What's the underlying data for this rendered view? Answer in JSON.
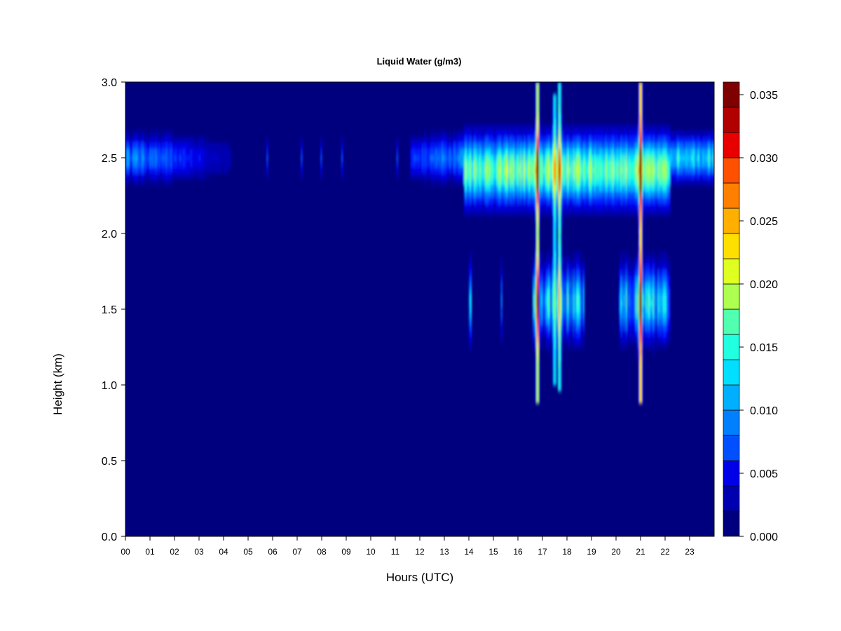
{
  "chart_data": {
    "type": "heatmap",
    "title": "Liquid Water (g/m3)",
    "xlabel": "Hours (UTC)",
    "ylabel": "Height (km)",
    "xlim": [
      0,
      24
    ],
    "ylim": [
      0.0,
      3.0
    ],
    "x_tick_labels": [
      "00",
      "01",
      "02",
      "03",
      "04",
      "05",
      "06",
      "07",
      "08",
      "09",
      "10",
      "11",
      "12",
      "13",
      "14",
      "15",
      "16",
      "17",
      "18",
      "19",
      "20",
      "21",
      "22",
      "23"
    ],
    "y_tick_labels": [
      "0.0",
      "0.5",
      "1.0",
      "1.5",
      "2.0",
      "2.5",
      "3.0"
    ],
    "colorbar": {
      "range": [
        0.0,
        0.036
      ],
      "levels": 18,
      "tick_values": [
        0.0,
        0.005,
        0.01,
        0.015,
        0.02,
        0.025,
        0.03,
        0.035
      ],
      "tick_labels": [
        "0.000",
        "0.005",
        "0.010",
        "0.015",
        "0.020",
        "0.025",
        "0.030",
        "0.035"
      ],
      "colors": [
        "#00007F",
        "#0000B0",
        "#0000E8",
        "#0020FF",
        "#0050FF",
        "#0080FF",
        "#00AFFF",
        "#00DFFF",
        "#20FFDF",
        "#50FFAF",
        "#80FF80",
        "#AFFF50",
        "#DFFF20",
        "#FFDF00",
        "#FFAF00",
        "#FF8000",
        "#FF5000",
        "#FF2000",
        "#E80000",
        "#B00000",
        "#7F0000"
      ]
    },
    "upper_layer": {
      "height_range_km": [
        2.05,
        2.75
      ],
      "core_height_km": 2.5,
      "active_hours": [
        [
          0.0,
          4.2
        ],
        [
          11.7,
          24.0
        ]
      ],
      "peak_value": 0.03
    },
    "lower_layer": {
      "height_range_km": [
        0.9,
        1.85
      ],
      "core_height_km": 1.55,
      "active_hours": [
        [
          16.6,
          18.7
        ],
        [
          20.1,
          22.2
        ]
      ],
      "peak_value": 0.031
    },
    "columns": [
      {
        "hour": 16.8,
        "base_km": 0.9,
        "top_km": 3.0,
        "peak": 0.026
      },
      {
        "hour": 17.5,
        "base_km": 1.0,
        "top_km": 2.9,
        "peak": 0.024
      },
      {
        "hour": 17.7,
        "base_km": 0.95,
        "top_km": 3.0,
        "peak": 0.022
      },
      {
        "hour": 21.0,
        "base_km": 0.9,
        "top_km": 3.0,
        "peak": 0.032
      }
    ]
  }
}
